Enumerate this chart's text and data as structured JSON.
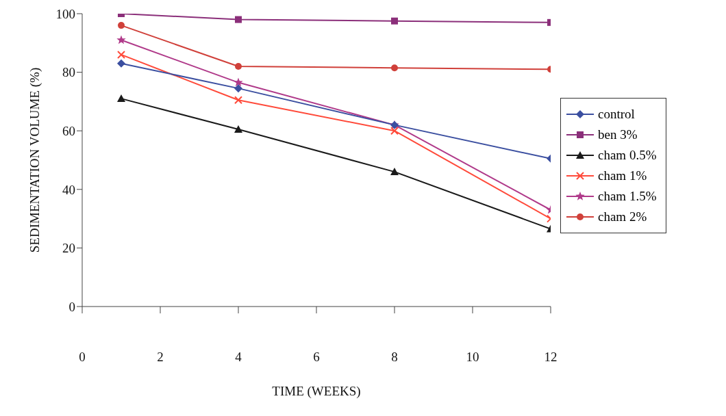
{
  "chart_data": {
    "type": "line",
    "xlabel": "TIME (WEEKS)",
    "ylabel": "SEDIMENTATION VOLUME (%)",
    "x": [
      1,
      4,
      8,
      12
    ],
    "series": [
      {
        "name": "control",
        "color": "#3b4fa0",
        "marker": "diamond",
        "values": [
          83,
          74.5,
          62,
          50.5
        ]
      },
      {
        "name": "ben 3%",
        "color": "#8b2f7a",
        "marker": "square",
        "values": [
          100,
          98,
          97.5,
          97
        ]
      },
      {
        "name": "cham 0.5%",
        "color": "#1a1a1a",
        "marker": "triangle",
        "values": [
          71,
          60.5,
          46,
          26.5
        ]
      },
      {
        "name": "cham 1%",
        "color": "#ff4a3a",
        "marker": "cross",
        "values": [
          86,
          70.5,
          60,
          30
        ]
      },
      {
        "name": "cham 1.5%",
        "color": "#b03a8a",
        "marker": "star",
        "values": [
          91,
          76.5,
          62,
          33
        ]
      },
      {
        "name": "cham 2%",
        "color": "#d0403a",
        "marker": "circle",
        "values": [
          96,
          82,
          81.5,
          81
        ]
      }
    ],
    "xlim": [
      0,
      12
    ],
    "xticks": [
      0,
      2,
      4,
      6,
      8,
      10,
      12
    ],
    "ylim": [
      0,
      100
    ],
    "yticks": [
      0,
      20,
      40,
      60,
      80,
      100
    ],
    "grid": false,
    "legend": "right",
    "line_style": "solid"
  }
}
